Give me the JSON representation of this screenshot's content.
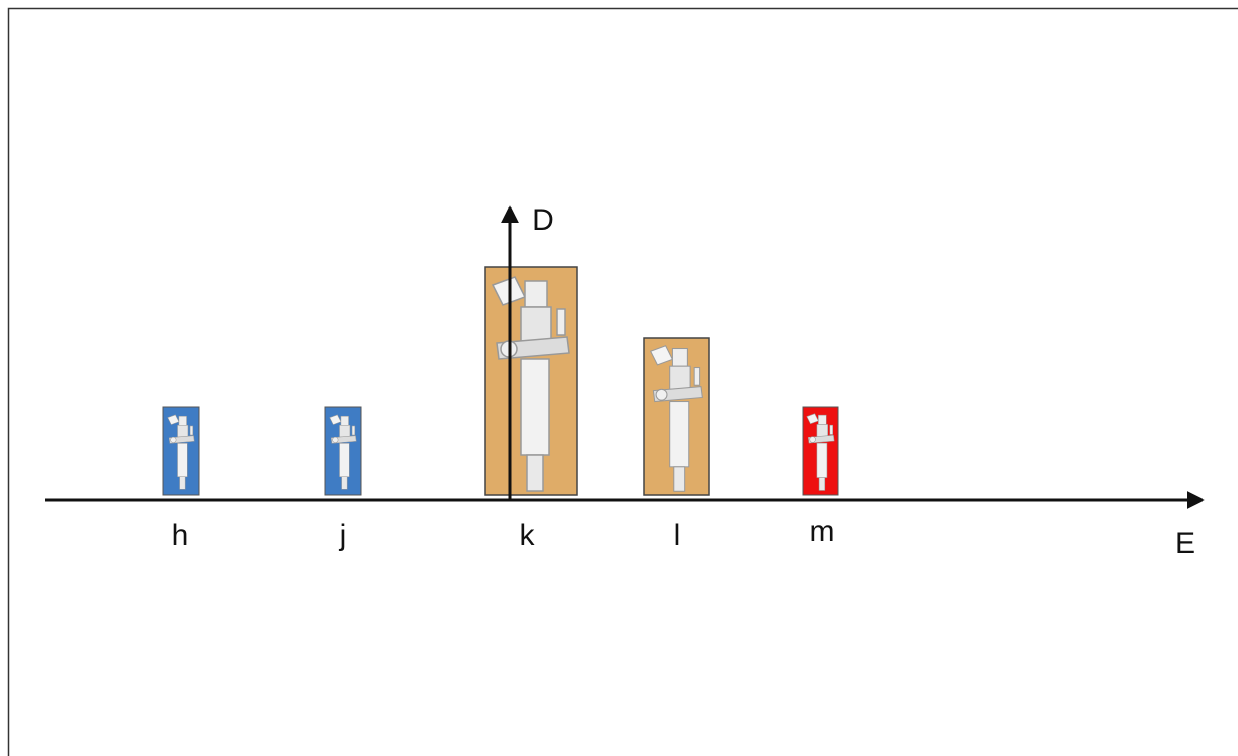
{
  "axes": {
    "y_label": "D",
    "x_label": "E"
  },
  "nodes": [
    {
      "label": "h"
    },
    {
      "label": "j"
    },
    {
      "label": "k"
    },
    {
      "label": "l"
    },
    {
      "label": "m"
    }
  ]
}
